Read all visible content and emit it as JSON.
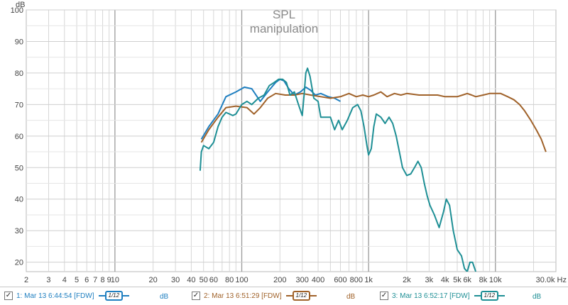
{
  "chart_data": {
    "type": "line",
    "title": "SPL",
    "subtitle": "manipulation",
    "ylabel": "dB",
    "xlabel": "Hz",
    "x_scale": "log",
    "xlim": [
      2,
      30000
    ],
    "ylim": [
      17,
      100
    ],
    "y_ticks": [
      20,
      30,
      40,
      50,
      60,
      70,
      80,
      90,
      100
    ],
    "x_ticks": [
      {
        "v": 2,
        "label": "2"
      },
      {
        "v": 3,
        "label": "3"
      },
      {
        "v": 4,
        "label": "4"
      },
      {
        "v": 5,
        "label": "5"
      },
      {
        "v": 6,
        "label": "6"
      },
      {
        "v": 7,
        "label": "7"
      },
      {
        "v": 8,
        "label": "8"
      },
      {
        "v": 9,
        "label": "9"
      },
      {
        "v": 10,
        "label": "10"
      },
      {
        "v": 20,
        "label": "20"
      },
      {
        "v": 30,
        "label": "30"
      },
      {
        "v": 40,
        "label": "40"
      },
      {
        "v": 50,
        "label": "50"
      },
      {
        "v": 60,
        "label": "60"
      },
      {
        "v": 80,
        "label": "80"
      },
      {
        "v": 100,
        "label": "100"
      },
      {
        "v": 200,
        "label": "200"
      },
      {
        "v": 300,
        "label": "300"
      },
      {
        "v": 400,
        "label": "400"
      },
      {
        "v": 600,
        "label": "600"
      },
      {
        "v": 800,
        "label": "800"
      },
      {
        "v": 1000,
        "label": "1k"
      },
      {
        "v": 2000,
        "label": "2k"
      },
      {
        "v": 3000,
        "label": "3k"
      },
      {
        "v": 4000,
        "label": "4k"
      },
      {
        "v": 5000,
        "label": "5k"
      },
      {
        "v": 6000,
        "label": "6k"
      },
      {
        "v": 8000,
        "label": "8k"
      },
      {
        "v": 10000,
        "label": "10k"
      },
      {
        "v": 30000,
        "label": "30.0k Hz"
      }
    ],
    "grid": true,
    "series": [
      {
        "name": "1: Mar 13 6:44:54 [FDW]",
        "unit": "dB",
        "color": "#1f7fc0",
        "points": [
          [
            48,
            59
          ],
          [
            55,
            63
          ],
          [
            65,
            67
          ],
          [
            75,
            72.5
          ],
          [
            90,
            74
          ],
          [
            105,
            75.5
          ],
          [
            120,
            75
          ],
          [
            140,
            71
          ],
          [
            160,
            74
          ],
          [
            185,
            77
          ],
          [
            200,
            78
          ],
          [
            215,
            77.5
          ],
          [
            235,
            75
          ],
          [
            260,
            73
          ],
          [
            290,
            74
          ],
          [
            320,
            75.5
          ],
          [
            350,
            74.5
          ],
          [
            380,
            73
          ],
          [
            420,
            73.5
          ],
          [
            480,
            72.5
          ],
          [
            540,
            72
          ],
          [
            600,
            71
          ]
        ]
      },
      {
        "name": "2: Mar 13 6:51:29 [FDW]",
        "unit": "dB",
        "color": "#a0622a",
        "points": [
          [
            48,
            58
          ],
          [
            55,
            62
          ],
          [
            65,
            66
          ],
          [
            75,
            69
          ],
          [
            90,
            69.5
          ],
          [
            110,
            69
          ],
          [
            125,
            67
          ],
          [
            140,
            69
          ],
          [
            160,
            72
          ],
          [
            185,
            73.5
          ],
          [
            220,
            73
          ],
          [
            260,
            73
          ],
          [
            300,
            73.5
          ],
          [
            350,
            73
          ],
          [
            420,
            72.5
          ],
          [
            500,
            72
          ],
          [
            600,
            72.5
          ],
          [
            700,
            73.5
          ],
          [
            800,
            72.5
          ],
          [
            900,
            73
          ],
          [
            1000,
            72.5
          ],
          [
            1100,
            73
          ],
          [
            1250,
            74
          ],
          [
            1400,
            72.5
          ],
          [
            1600,
            73.5
          ],
          [
            1800,
            73
          ],
          [
            2000,
            73.5
          ],
          [
            2500,
            73
          ],
          [
            3000,
            73
          ],
          [
            3500,
            73
          ],
          [
            4000,
            72.5
          ],
          [
            4500,
            72.5
          ],
          [
            5000,
            72.5
          ],
          [
            5500,
            73
          ],
          [
            6000,
            73.5
          ],
          [
            6500,
            73
          ],
          [
            7000,
            72.5
          ],
          [
            8000,
            73
          ],
          [
            9000,
            73.5
          ],
          [
            10000,
            73.5
          ],
          [
            11000,
            73.5
          ],
          [
            12500,
            72.5
          ],
          [
            14000,
            71.5
          ],
          [
            15500,
            70
          ],
          [
            17000,
            68
          ],
          [
            19000,
            65
          ],
          [
            21000,
            62
          ],
          [
            23000,
            59
          ],
          [
            25000,
            55
          ]
        ]
      },
      {
        "name": "3: Mar 13 6:52:17 [FDW]",
        "unit": "dB",
        "color": "#1e8f95",
        "points": [
          [
            47,
            49
          ],
          [
            48,
            55
          ],
          [
            50,
            57
          ],
          [
            55,
            56
          ],
          [
            60,
            58
          ],
          [
            65,
            63
          ],
          [
            70,
            66
          ],
          [
            75,
            67.5
          ],
          [
            80,
            67
          ],
          [
            85,
            66.5
          ],
          [
            90,
            67
          ],
          [
            100,
            70
          ],
          [
            110,
            71
          ],
          [
            120,
            70
          ],
          [
            135,
            72
          ],
          [
            150,
            73
          ],
          [
            165,
            76
          ],
          [
            180,
            77
          ],
          [
            195,
            78
          ],
          [
            210,
            78
          ],
          [
            225,
            77
          ],
          [
            240,
            73
          ],
          [
            260,
            74
          ],
          [
            280,
            70
          ],
          [
            300,
            66.5
          ],
          [
            310,
            73
          ],
          [
            320,
            80
          ],
          [
            330,
            81.5
          ],
          [
            345,
            79
          ],
          [
            370,
            72
          ],
          [
            400,
            71
          ],
          [
            420,
            66
          ],
          [
            460,
            66
          ],
          [
            500,
            66
          ],
          [
            540,
            62
          ],
          [
            580,
            65
          ],
          [
            620,
            62
          ],
          [
            680,
            65
          ],
          [
            750,
            69
          ],
          [
            820,
            70
          ],
          [
            870,
            68
          ],
          [
            920,
            63
          ],
          [
            970,
            57
          ],
          [
            1000,
            54
          ],
          [
            1050,
            56
          ],
          [
            1100,
            63
          ],
          [
            1150,
            67
          ],
          [
            1250,
            66
          ],
          [
            1350,
            64
          ],
          [
            1450,
            66
          ],
          [
            1550,
            64
          ],
          [
            1650,
            60
          ],
          [
            1750,
            55
          ],
          [
            1850,
            50
          ],
          [
            2000,
            47.5
          ],
          [
            2150,
            48
          ],
          [
            2300,
            50
          ],
          [
            2450,
            52
          ],
          [
            2600,
            50
          ],
          [
            2750,
            45
          ],
          [
            2900,
            41
          ],
          [
            3050,
            38
          ],
          [
            3300,
            35
          ],
          [
            3600,
            31
          ],
          [
            3900,
            36
          ],
          [
            4100,
            40
          ],
          [
            4350,
            38
          ],
          [
            4650,
            30
          ],
          [
            5000,
            24
          ],
          [
            5400,
            22
          ],
          [
            5700,
            18
          ],
          [
            6000,
            17
          ],
          [
            6300,
            20
          ],
          [
            6600,
            20
          ],
          [
            7000,
            17
          ]
        ]
      }
    ]
  },
  "legend": [
    {
      "checked": "✓",
      "label": "1: Mar 13 6:44:54 [FDW]",
      "smoothing": "1/12",
      "unit": "dB",
      "color": "#1f7fc0"
    },
    {
      "checked": "✓",
      "label": "2: Mar 13 6:51:29 [FDW]",
      "smoothing": "1/12",
      "unit": "dB",
      "color": "#a0622a"
    },
    {
      "checked": "✓",
      "label": "3: Mar 13 6:52:17 [FDW]",
      "smoothing": "1/12",
      "unit": "dB",
      "color": "#1e8f95"
    }
  ]
}
